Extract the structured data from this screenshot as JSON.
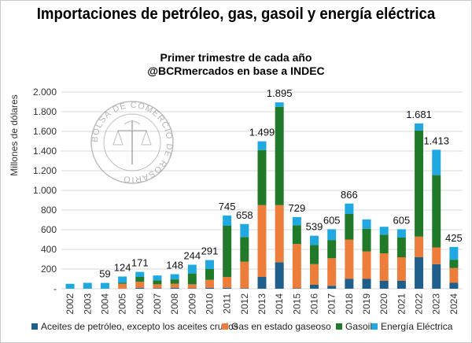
{
  "title": "Importaciones de petróleo, gas, gasoil y energía eléctrica",
  "subtitle_line1": "Primer trimestre de cada año",
  "subtitle_line2": "@BCRmercados en base a INDEC",
  "watermark": "BOLSA DE COMERCIO DE ROSARIO",
  "colors": {
    "aceites": "#1f5f8b",
    "gas": "#ec7d3a",
    "gasoil": "#217a2a",
    "energia": "#20a9e0",
    "grid": "#d9d9d9"
  },
  "chart_data": {
    "type": "bar",
    "stacked": true,
    "ylabel": "Millones de dólares",
    "xlabel": "",
    "ylim": [
      0,
      2000
    ],
    "yticks": [
      "-",
      "200",
      "400",
      "600",
      "800",
      "1.000",
      "1.200",
      "1.400",
      "1.600",
      "1.800",
      "2.000"
    ],
    "grid": true,
    "legend_position": "bottom",
    "categories": [
      "2002",
      "2003",
      "2004",
      "2005",
      "2006",
      "2007",
      "2008",
      "2009",
      "2010",
      "2011",
      "2012",
      "2013",
      "2014",
      "2015",
      "2016",
      "2017",
      "2018",
      "2019",
      "2020",
      "2021",
      "2022",
      "2023",
      "2024"
    ],
    "series": [
      {
        "name": "Aceites de petróleo, excepto los aceites crudos",
        "color_key": "aceites",
        "values": [
          0,
          0,
          0,
          0,
          10,
          5,
          10,
          5,
          10,
          10,
          5,
          120,
          270,
          5,
          40,
          30,
          100,
          100,
          80,
          80,
          320,
          250,
          60
        ]
      },
      {
        "name": "Gas en estado gaseoso",
        "color_key": "gas",
        "values": [
          0,
          0,
          0,
          50,
          60,
          40,
          40,
          40,
          80,
          110,
          270,
          730,
          580,
          450,
          210,
          280,
          400,
          280,
          280,
          240,
          210,
          170,
          150
        ]
      },
      {
        "name": "Gasoil",
        "color_key": "gasoil",
        "values": [
          0,
          0,
          0,
          10,
          50,
          40,
          45,
          110,
          110,
          520,
          250,
          560,
          1000,
          190,
          195,
          185,
          260,
          230,
          190,
          200,
          1080,
          735,
          85
        ]
      },
      {
        "name": "Energía Eléctrica",
        "color_key": "energia",
        "values": [
          50,
          60,
          59,
          64,
          51,
          50,
          53,
          89,
          91,
          105,
          133,
          89,
          45,
          84,
          94,
          110,
          106,
          95,
          80,
          85,
          71,
          258,
          130
        ]
      }
    ],
    "totals_labeled": [
      "",
      "",
      "59",
      "124",
      "171",
      "",
      "148",
      "244",
      "291",
      "745",
      "658",
      "1.499",
      "1.895",
      "729",
      "539",
      "605",
      "866",
      "",
      "",
      "605",
      "1.681",
      "1.413",
      "425"
    ]
  }
}
